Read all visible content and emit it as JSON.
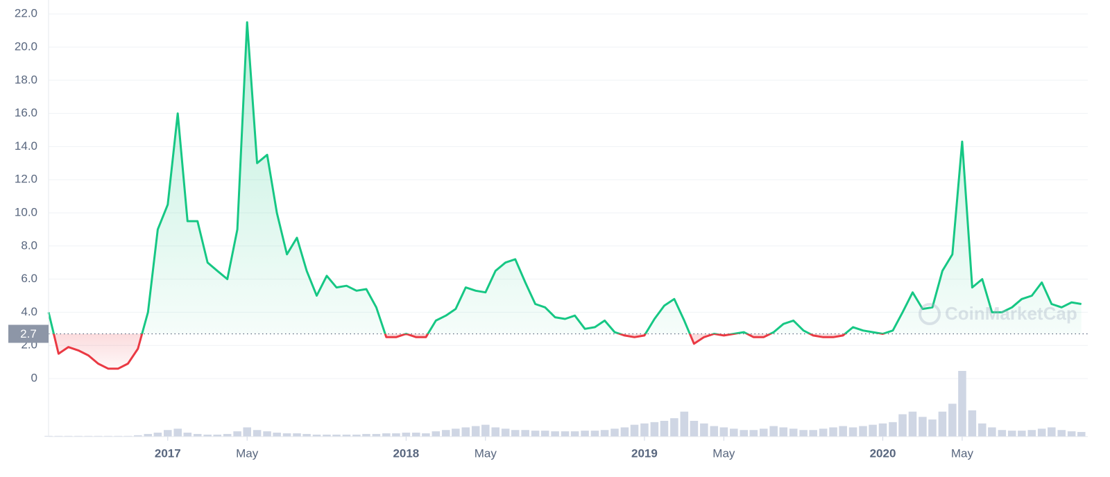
{
  "chart_data": {
    "type": "line",
    "x": [
      2016.5,
      2016.542,
      2016.583,
      2016.625,
      2016.667,
      2016.708,
      2016.75,
      2016.792,
      2016.833,
      2016.875,
      2016.917,
      2016.958,
      2017,
      2017.042,
      2017.083,
      2017.125,
      2017.167,
      2017.208,
      2017.25,
      2017.292,
      2017.333,
      2017.375,
      2017.417,
      2017.458,
      2017.5,
      2017.542,
      2017.583,
      2017.625,
      2017.667,
      2017.708,
      2017.75,
      2017.792,
      2017.833,
      2017.875,
      2017.917,
      2017.958,
      2018,
      2018.042,
      2018.083,
      2018.125,
      2018.167,
      2018.208,
      2018.25,
      2018.292,
      2018.333,
      2018.375,
      2018.417,
      2018.458,
      2018.5,
      2018.542,
      2018.583,
      2018.625,
      2018.667,
      2018.708,
      2018.75,
      2018.792,
      2018.833,
      2018.875,
      2018.917,
      2018.958,
      2019,
      2019.042,
      2019.083,
      2019.125,
      2019.167,
      2019.208,
      2019.25,
      2019.292,
      2019.333,
      2019.375,
      2019.417,
      2019.458,
      2019.5,
      2019.542,
      2019.583,
      2019.625,
      2019.667,
      2019.708,
      2019.75,
      2019.792,
      2019.833,
      2019.875,
      2019.917,
      2019.958,
      2020,
      2020.042,
      2020.083,
      2020.125,
      2020.167,
      2020.208,
      2020.25,
      2020.292,
      2020.333,
      2020.375,
      2020.417,
      2020.458,
      2020.5,
      2020.542,
      2020.583,
      2020.625,
      2020.667,
      2020.708,
      2020.75,
      2020.792,
      2020.833
    ],
    "values": [
      4.0,
      1.5,
      1.9,
      1.7,
      1.4,
      0.9,
      0.6,
      0.6,
      0.9,
      1.8,
      4.0,
      9.0,
      10.5,
      16.0,
      9.5,
      9.5,
      7.0,
      6.5,
      6.0,
      9.0,
      21.5,
      13.0,
      13.5,
      10.0,
      7.5,
      8.5,
      6.5,
      5.0,
      6.2,
      5.5,
      5.6,
      5.3,
      5.4,
      4.3,
      2.5,
      2.5,
      2.7,
      2.5,
      2.5,
      3.5,
      3.8,
      4.2,
      5.5,
      5.3,
      5.2,
      6.5,
      7.0,
      7.2,
      5.8,
      4.5,
      4.3,
      3.7,
      3.6,
      3.8,
      3.0,
      3.1,
      3.5,
      2.8,
      2.6,
      2.5,
      2.6,
      3.6,
      4.4,
      4.8,
      3.5,
      2.1,
      2.5,
      2.7,
      2.6,
      2.7,
      2.8,
      2.5,
      2.5,
      2.8,
      3.3,
      3.5,
      2.9,
      2.6,
      2.5,
      2.5,
      2.6,
      3.1,
      2.9,
      2.8,
      2.7,
      2.9,
      4.0,
      5.2,
      4.2,
      4.3,
      6.5,
      7.5,
      14.3,
      5.5,
      6.0,
      4.0,
      4.0,
      4.3,
      4.8,
      5.0,
      5.8,
      4.5,
      4.3,
      4.6,
      4.5
    ],
    "volume": [
      1,
      1,
      1,
      1,
      1,
      1,
      1,
      1,
      1,
      2,
      4,
      6,
      10,
      12,
      6,
      4,
      3,
      3,
      4,
      8,
      14,
      10,
      8,
      6,
      5,
      5,
      4,
      3,
      3,
      3,
      3,
      3,
      4,
      4,
      5,
      5,
      6,
      6,
      5,
      8,
      10,
      12,
      14,
      16,
      18,
      14,
      12,
      10,
      10,
      9,
      9,
      8,
      8,
      8,
      9,
      9,
      10,
      12,
      14,
      18,
      20,
      22,
      24,
      28,
      38,
      24,
      20,
      16,
      14,
      12,
      10,
      10,
      12,
      16,
      14,
      12,
      10,
      10,
      12,
      14,
      16,
      14,
      16,
      18,
      20,
      22,
      34,
      38,
      30,
      26,
      38,
      50,
      100,
      40,
      20,
      14,
      10,
      9,
      9,
      10,
      12,
      14,
      10,
      8,
      7
    ],
    "volume_lim": [
      0,
      100
    ],
    "baseline": 2.7,
    "up_color": "#16c784",
    "down_color": "#ea3943",
    "volume_color": "#cfd6e4",
    "xlim": [
      2016.5,
      2020.86
    ],
    "ylim": [
      -3.5,
      22.4
    ],
    "xticks": [
      2017,
      {
        "value": 2017.333,
        "label": "May"
      },
      2018,
      {
        "value": 2018.333,
        "label": "May"
      },
      2019,
      {
        "value": 2019.333,
        "label": "May"
      },
      2020,
      {
        "value": 2020.333,
        "label": "May"
      }
    ],
    "yticks": [
      {
        "value": 22,
        "label": "22.0"
      },
      {
        "value": 20,
        "label": "20.0"
      },
      {
        "value": 18,
        "label": "18.0"
      },
      {
        "value": 16,
        "label": "16.0"
      },
      {
        "value": 14,
        "label": "14.0"
      },
      {
        "value": 12,
        "label": "12.0"
      },
      {
        "value": 10,
        "label": "10.0"
      },
      {
        "value": 8,
        "label": "8.0"
      },
      {
        "value": 6,
        "label": "6.0"
      },
      {
        "value": 4,
        "label": "4.0"
      },
      {
        "value": 2,
        "label": "2.0"
      },
      0
    ],
    "grid": true,
    "watermark": "CoinMarketCap"
  }
}
